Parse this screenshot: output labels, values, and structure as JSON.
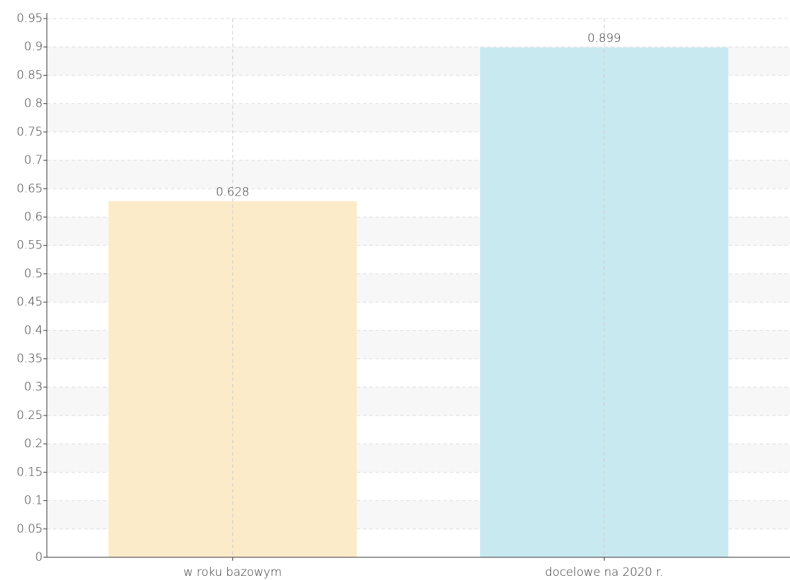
{
  "chart_data": {
    "type": "bar",
    "categories": [
      "w roku bazowym",
      "docelowe na 2020 r."
    ],
    "values": [
      0.628,
      0.899
    ],
    "colors": [
      "#fcebc9",
      "#c8e9f0"
    ],
    "ylim": [
      0,
      0.95
    ],
    "yticks": [
      0,
      0.05,
      0.1,
      0.15,
      0.2,
      0.25,
      0.3,
      0.35,
      0.4,
      0.45,
      0.5,
      0.55,
      0.6,
      0.65,
      0.7,
      0.75,
      0.8,
      0.85,
      0.9,
      0.95
    ],
    "grid": true
  }
}
